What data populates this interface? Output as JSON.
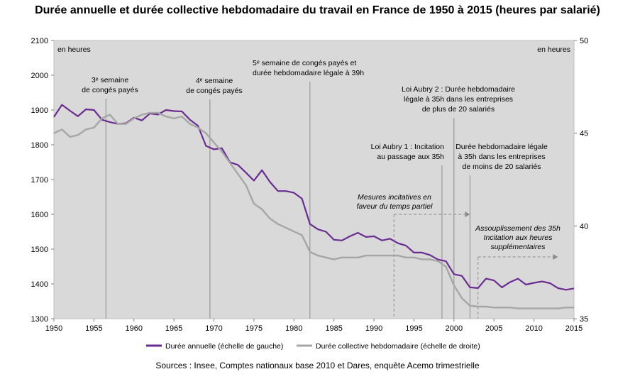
{
  "title": "Durée annuelle et durée collective hebdomadaire du travail en France de 1950 à 2015 (heures par salarié)",
  "source": "Sources : Insee, Comptes nationaux base 2010 et Dares, enquête Acemo trimestrielle",
  "colors": {
    "annual": "#6a2c91",
    "weekly": "#a6a6a6",
    "plot_background": "#d9d9d9",
    "event_line": "#8c8c8c"
  },
  "chart_data": {
    "type": "line",
    "grid": false,
    "x_ticks": [
      1950,
      1955,
      1960,
      1965,
      1970,
      1975,
      1980,
      1985,
      1990,
      1995,
      2000,
      2005,
      2010,
      2015
    ],
    "xlim": [
      1950,
      2015
    ],
    "y_left": {
      "unit_label": "en heures",
      "ylim": [
        1300,
        2100
      ],
      "ticks": [
        1300,
        1400,
        1500,
        1600,
        1700,
        1800,
        1900,
        2000,
        2100
      ]
    },
    "y_right": {
      "unit_label": "en heures",
      "ylim": [
        35,
        50
      ],
      "ticks": [
        35,
        40,
        45,
        50
      ]
    },
    "legend_position": "bottom",
    "series": [
      {
        "name": "Durée annuelle (échelle de gauche)",
        "axis": "left",
        "x": [
          1950,
          1951,
          1952,
          1953,
          1954,
          1955,
          1956,
          1957,
          1958,
          1959,
          1960,
          1961,
          1962,
          1963,
          1964,
          1965,
          1966,
          1967,
          1968,
          1969,
          1970,
          1971,
          1972,
          1973,
          1974,
          1975,
          1976,
          1977,
          1978,
          1979,
          1980,
          1981,
          1982,
          1983,
          1984,
          1985,
          1986,
          1987,
          1988,
          1989,
          1990,
          1991,
          1992,
          1993,
          1994,
          1995,
          1996,
          1997,
          1998,
          1999,
          2000,
          2001,
          2002,
          2003,
          2004,
          2005,
          2006,
          2007,
          2008,
          2009,
          2010,
          2011,
          2012,
          2013,
          2014,
          2015
        ],
        "values": [
          1880,
          1915,
          1898,
          1882,
          1902,
          1900,
          1872,
          1865,
          1860,
          1862,
          1878,
          1870,
          1890,
          1887,
          1900,
          1897,
          1896,
          1872,
          1855,
          1797,
          1787,
          1790,
          1750,
          1742,
          1720,
          1697,
          1727,
          1693,
          1667,
          1667,
          1662,
          1645,
          1572,
          1557,
          1550,
          1527,
          1525,
          1537,
          1547,
          1535,
          1537,
          1525,
          1530,
          1517,
          1510,
          1490,
          1490,
          1483,
          1470,
          1465,
          1428,
          1423,
          1390,
          1388,
          1415,
          1410,
          1390,
          1405,
          1415,
          1398,
          1403,
          1407,
          1402,
          1388,
          1383,
          1387
        ]
      },
      {
        "name": "Durée collective hebdomadaire (échelle de droite)",
        "axis": "right",
        "x": [
          1950,
          1951,
          1952,
          1953,
          1954,
          1955,
          1956,
          1957,
          1958,
          1959,
          1960,
          1961,
          1962,
          1963,
          1964,
          1965,
          1966,
          1967,
          1968,
          1969,
          1970,
          1971,
          1972,
          1973,
          1974,
          1975,
          1976,
          1977,
          1978,
          1979,
          1980,
          1981,
          1982,
          1983,
          1984,
          1985,
          1986,
          1987,
          1988,
          1989,
          1990,
          1991,
          1992,
          1993,
          1994,
          1995,
          1996,
          1997,
          1998,
          1999,
          2000,
          2001,
          2002,
          2003,
          2004,
          2005,
          2006,
          2007,
          2008,
          2009,
          2010,
          2011,
          2012,
          2013,
          2014,
          2015
        ],
        "values": [
          45.0,
          45.2,
          44.8,
          44.9,
          45.2,
          45.3,
          45.8,
          46.0,
          45.5,
          45.5,
          45.8,
          46.0,
          46.1,
          46.1,
          45.9,
          45.8,
          45.9,
          45.5,
          45.3,
          45.0,
          44.5,
          44.0,
          43.4,
          42.8,
          42.2,
          41.2,
          40.9,
          40.4,
          40.1,
          39.9,
          39.7,
          39.5,
          38.6,
          38.4,
          38.3,
          38.2,
          38.3,
          38.3,
          38.3,
          38.4,
          38.4,
          38.4,
          38.4,
          38.4,
          38.3,
          38.3,
          38.2,
          38.2,
          38.1,
          37.8,
          36.8,
          36.1,
          35.7,
          35.65,
          35.65,
          35.6,
          35.6,
          35.6,
          35.55,
          35.55,
          35.55,
          35.55,
          35.55,
          35.55,
          35.6,
          35.6
        ]
      }
    ],
    "events": [
      {
        "year": 1956.5,
        "label_lines": [
          "3ᵉ semaine",
          "de congés payés"
        ],
        "label_anchor": "middle"
      },
      {
        "year": 1969.5,
        "label_lines": [
          "4ᵉ semaine",
          "de congés payés"
        ],
        "label_anchor": "middle"
      },
      {
        "year": 1982,
        "label_lines": [
          "5ᵉ semaine de congés payés et",
          "durée hebdomadaire légale à 39h"
        ],
        "label_anchor": "start"
      },
      {
        "year": 1998.5,
        "label_lines": [
          "Loi Aubry 1 : Incitation",
          "au passage aux 35h"
        ],
        "label_anchor": "end"
      },
      {
        "year": 2000,
        "label_lines": [
          "Loi Aubry 2 : Durée hebdomadaire",
          "légale à 35h dans les entreprises",
          "de plus de 20 salariés"
        ],
        "label_anchor": "middle"
      },
      {
        "year": 2002,
        "label_lines": [
          "Durée hebdomadaire légale",
          "à 35h dans les entreprises",
          "de moins de 20 salariés"
        ],
        "label_anchor": "middle"
      }
    ],
    "periods": [
      {
        "start": 1992.5,
        "end": 2002.0,
        "label_lines": [
          "Mesures incitatives en",
          "faveur du temps partiel"
        ]
      },
      {
        "start": 2003.0,
        "end": 2013.0,
        "label_lines": [
          "Assouplissement des 35h",
          "Incitation aux heures",
          "supplémentaires"
        ]
      }
    ]
  }
}
